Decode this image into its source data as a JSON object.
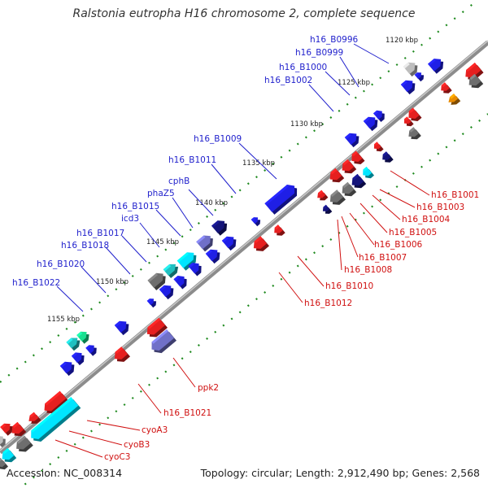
{
  "title": "Ralstonia eutropha H16 chromosome 2, complete sequence",
  "footer": {
    "accession": "Accession: NC_008314",
    "summary": "Topology: circular; Length: 2,912,490 bp; Genes: 2,568"
  },
  "colors": {
    "backbone": "#8c8c8c",
    "forward_gene": "#1f1fe6",
    "reverse_gene": "#e61f1f",
    "gray_gene": "#6e6e6e",
    "light_gray_gene": "#bdbdbd",
    "navy_gene": "#14147a",
    "lavender_gene": "#7070c8",
    "cyan_gene": "#00e5ff",
    "teal_gene": "#20c0c0",
    "green_gene": "#18e090",
    "orange_gene": "#e88a00",
    "tick_green": "#1f8a1f",
    "label_blue": "#1f1fcc",
    "label_red": "#d01010"
  },
  "scale_labels": [
    "1120 kbp",
    "1125 kbp",
    "1130 kbp",
    "1135 kbp",
    "1140 kbp",
    "1145 kbp",
    "1150 kbp",
    "1155 kbp"
  ],
  "blue_labels": [
    "h16_B0996",
    "h16_B0999",
    "h16_B1000",
    "h16_B1002",
    "h16_B1009",
    "h16_B1011",
    "cphB",
    "phaZ5",
    "h16_B1015",
    "icd3",
    "h16_B1017",
    "h16_B1018",
    "h16_B1020",
    "h16_B1022"
  ],
  "red_labels": [
    "h16_B1001",
    "h16_B1003",
    "h16_B1004",
    "h16_B1005",
    "h16_B1006",
    "h16_B1007",
    "h16_B1008",
    "h16_B1010",
    "h16_B1012",
    "ppk2",
    "h16_B1021",
    "cyoA3",
    "cyoB3",
    "cyoC3"
  ]
}
